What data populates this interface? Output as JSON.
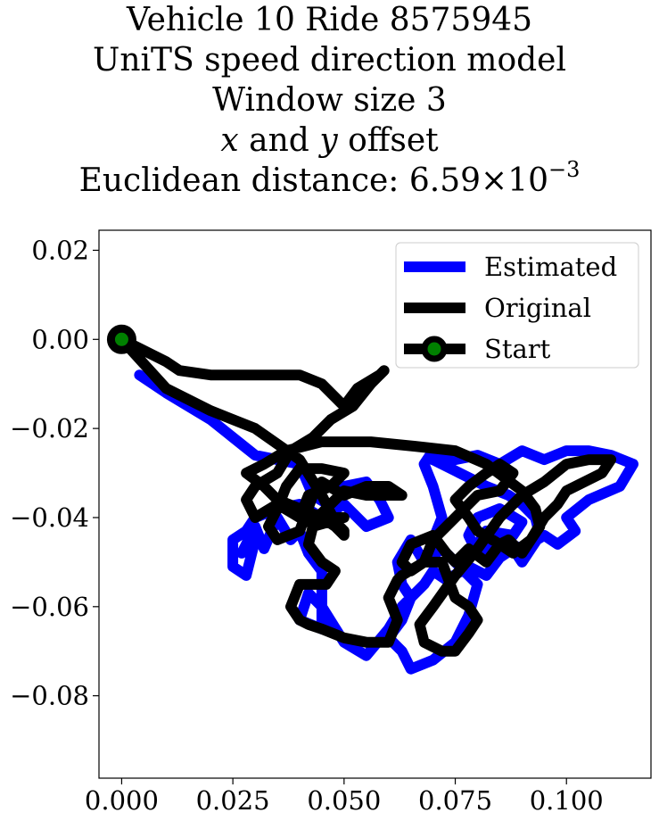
{
  "chart_data": {
    "type": "line",
    "title_lines": {
      "line1": "Vehicle 10 Ride 8575945",
      "line2": "UniTS speed direction model",
      "line3": "Window size 3",
      "line4_var1": "x",
      "line4_and": "and",
      "line4_var2": "y",
      "line4_rest": "offset",
      "line5_prefix": "Euclidean distance: 6.59",
      "line5_times": "×",
      "line5_base": "10",
      "line5_exp": "−3"
    },
    "xlim": [
      -0.0051,
      0.119
    ],
    "ylim": [
      -0.0985,
      0.0245
    ],
    "x_ticks": [
      {
        "value": 0.0,
        "label": "0.000"
      },
      {
        "value": 0.025,
        "label": "0.025"
      },
      {
        "value": 0.05,
        "label": "0.050"
      },
      {
        "value": 0.075,
        "label": "0.075"
      },
      {
        "value": 0.1,
        "label": "0.100"
      }
    ],
    "y_ticks": [
      {
        "value": 0.02,
        "label": "0.02"
      },
      {
        "value": 0.0,
        "label": "0.00"
      },
      {
        "value": -0.02,
        "label": "−0.02"
      },
      {
        "value": -0.04,
        "label": "−0.04"
      },
      {
        "value": -0.06,
        "label": "−0.06"
      },
      {
        "value": -0.08,
        "label": "−0.08"
      }
    ],
    "grid": false,
    "legend_position": "top-right",
    "series": [
      {
        "name": "Estimated",
        "color": "#0000ff",
        "x": [
          0.004,
          0.01,
          0.02,
          0.03,
          0.04,
          0.043,
          0.048,
          0.05,
          0.055,
          0.058,
          0.06,
          0.055,
          0.05,
          0.045,
          0.04,
          0.035,
          0.03,
          0.028,
          0.025,
          0.025,
          0.028,
          0.03,
          0.027,
          0.03,
          0.032,
          0.035,
          0.038,
          0.04,
          0.042,
          0.045,
          0.045,
          0.04,
          0.042,
          0.045,
          0.05,
          0.055,
          0.06,
          0.063,
          0.065,
          0.063,
          0.06,
          0.063,
          0.065,
          0.07,
          0.075,
          0.078,
          0.08,
          0.075,
          0.07,
          0.072,
          0.07,
          0.068,
          0.07,
          0.075,
          0.08,
          0.085,
          0.09,
          0.095,
          0.1,
          0.105,
          0.11,
          0.115,
          0.112,
          0.105,
          0.1,
          0.102,
          0.098,
          0.095,
          0.09,
          0.085,
          0.08,
          0.078,
          0.08,
          0.085,
          0.09,
          0.088,
          0.082,
          0.08,
          0.078,
          0.075,
          0.072,
          0.068,
          0.065,
          0.062,
          0.063,
          0.065,
          0.068,
          0.07,
          0.073,
          0.078,
          0.082,
          0.085,
          0.088,
          0.09,
          0.092,
          0.094,
          0.093,
          0.09,
          0.087,
          0.082,
          0.076,
          0.07
        ],
        "y": [
          -0.008,
          -0.012,
          -0.018,
          -0.026,
          -0.028,
          -0.035,
          -0.038,
          -0.033,
          -0.032,
          -0.036,
          -0.04,
          -0.042,
          -0.037,
          -0.04,
          -0.037,
          -0.038,
          -0.04,
          -0.043,
          -0.045,
          -0.051,
          -0.053,
          -0.045,
          -0.048,
          -0.042,
          -0.047,
          -0.04,
          -0.045,
          -0.043,
          -0.048,
          -0.052,
          -0.065,
          -0.063,
          -0.057,
          -0.06,
          -0.068,
          -0.071,
          -0.065,
          -0.06,
          -0.058,
          -0.063,
          -0.067,
          -0.07,
          -0.074,
          -0.072,
          -0.068,
          -0.062,
          -0.055,
          -0.05,
          -0.045,
          -0.04,
          -0.033,
          -0.028,
          -0.025,
          -0.027,
          -0.026,
          -0.028,
          -0.025,
          -0.027,
          -0.025,
          -0.025,
          -0.026,
          -0.028,
          -0.033,
          -0.036,
          -0.04,
          -0.043,
          -0.046,
          -0.044,
          -0.047,
          -0.045,
          -0.048,
          -0.044,
          -0.04,
          -0.038,
          -0.041,
          -0.044,
          -0.043,
          -0.046,
          -0.049,
          -0.05,
          -0.047,
          -0.05,
          -0.045,
          -0.05,
          -0.055,
          -0.058,
          -0.055,
          -0.052,
          -0.054,
          -0.051,
          -0.053,
          -0.049,
          -0.047,
          -0.05,
          -0.047,
          -0.044,
          -0.04,
          -0.037,
          -0.035,
          -0.033,
          -0.03,
          -0.027
        ]
      },
      {
        "name": "Original",
        "color": "#000000",
        "x": [
          0.0,
          0.01,
          0.013,
          0.02,
          0.03,
          0.04,
          0.045,
          0.048,
          0.05,
          0.053,
          0.058,
          0.059,
          0.056,
          0.052,
          0.047,
          0.043,
          0.038,
          0.035,
          0.03,
          0.028,
          0.03,
          0.035,
          0.04,
          0.042,
          0.047,
          0.05,
          0.045,
          0.04,
          0.037,
          0.035,
          0.033,
          0.035,
          0.04,
          0.043,
          0.045,
          0.05,
          0.055,
          0.06,
          0.063,
          0.06,
          0.055,
          0.05,
          0.045,
          0.042,
          0.045,
          0.05,
          0.043,
          0.042,
          0.045,
          0.048,
          0.046,
          0.04,
          0.038,
          0.04,
          0.042,
          0.045,
          0.05,
          0.055,
          0.06,
          0.062,
          0.06,
          0.062,
          0.063,
          0.068,
          0.072,
          0.075,
          0.078,
          0.08,
          0.078,
          0.075,
          0.072,
          0.07,
          0.068,
          0.067,
          0.07,
          0.075,
          0.08,
          0.085,
          0.09,
          0.095,
          0.1,
          0.105,
          0.11,
          0.108,
          0.1,
          0.098,
          0.095,
          0.092,
          0.088,
          0.085,
          0.08,
          0.078,
          0.075,
          0.078,
          0.082,
          0.085,
          0.088,
          0.085,
          0.08,
          0.077,
          0.075,
          0.07,
          0.068,
          0.065,
          0.063,
          0.065,
          0.07,
          0.073,
          0.075,
          0.078,
          0.082,
          0.085,
          0.087,
          0.09,
          0.092,
          0.094,
          0.093,
          0.09,
          0.086,
          0.082,
          0.075,
          0.066,
          0.056,
          0.045,
          0.037,
          0.032,
          0.028,
          0.032,
          0.035,
          0.04,
          0.045,
          0.048,
          0.05,
          0.05,
          0.048,
          0.045,
          0.04,
          0.03,
          0.02,
          0.01,
          0.0
        ],
        "y": [
          0.0,
          -0.005,
          -0.007,
          -0.008,
          -0.008,
          -0.008,
          -0.01,
          -0.013,
          -0.015,
          -0.011,
          -0.008,
          -0.007,
          -0.01,
          -0.015,
          -0.018,
          -0.022,
          -0.025,
          -0.03,
          -0.033,
          -0.036,
          -0.04,
          -0.037,
          -0.04,
          -0.035,
          -0.033,
          -0.03,
          -0.029,
          -0.029,
          -0.033,
          -0.038,
          -0.042,
          -0.045,
          -0.043,
          -0.035,
          -0.032,
          -0.035,
          -0.033,
          -0.033,
          -0.035,
          -0.035,
          -0.035,
          -0.034,
          -0.039,
          -0.041,
          -0.04,
          -0.04,
          -0.042,
          -0.046,
          -0.05,
          -0.052,
          -0.055,
          -0.055,
          -0.06,
          -0.063,
          -0.064,
          -0.065,
          -0.067,
          -0.068,
          -0.068,
          -0.063,
          -0.058,
          -0.054,
          -0.053,
          -0.05,
          -0.05,
          -0.058,
          -0.06,
          -0.063,
          -0.066,
          -0.07,
          -0.07,
          -0.069,
          -0.068,
          -0.064,
          -0.06,
          -0.053,
          -0.047,
          -0.04,
          -0.035,
          -0.032,
          -0.028,
          -0.027,
          -0.027,
          -0.03,
          -0.034,
          -0.037,
          -0.04,
          -0.045,
          -0.048,
          -0.046,
          -0.043,
          -0.04,
          -0.036,
          -0.033,
          -0.03,
          -0.028,
          -0.03,
          -0.034,
          -0.035,
          -0.038,
          -0.04,
          -0.045,
          -0.05,
          -0.052,
          -0.05,
          -0.046,
          -0.044,
          -0.048,
          -0.05,
          -0.047,
          -0.05,
          -0.046,
          -0.045,
          -0.048,
          -0.045,
          -0.042,
          -0.038,
          -0.034,
          -0.031,
          -0.028,
          -0.025,
          -0.024,
          -0.023,
          -0.023,
          -0.025,
          -0.028,
          -0.03,
          -0.033,
          -0.036,
          -0.038,
          -0.04,
          -0.042,
          -0.044,
          -0.043,
          -0.041,
          -0.035,
          -0.027,
          -0.02,
          -0.016,
          -0.011,
          0.0
        ]
      }
    ],
    "start_marker": {
      "name": "Start",
      "x": 0.0,
      "y": 0.0,
      "edge_color": "#000000",
      "face_color": "#008000"
    }
  }
}
